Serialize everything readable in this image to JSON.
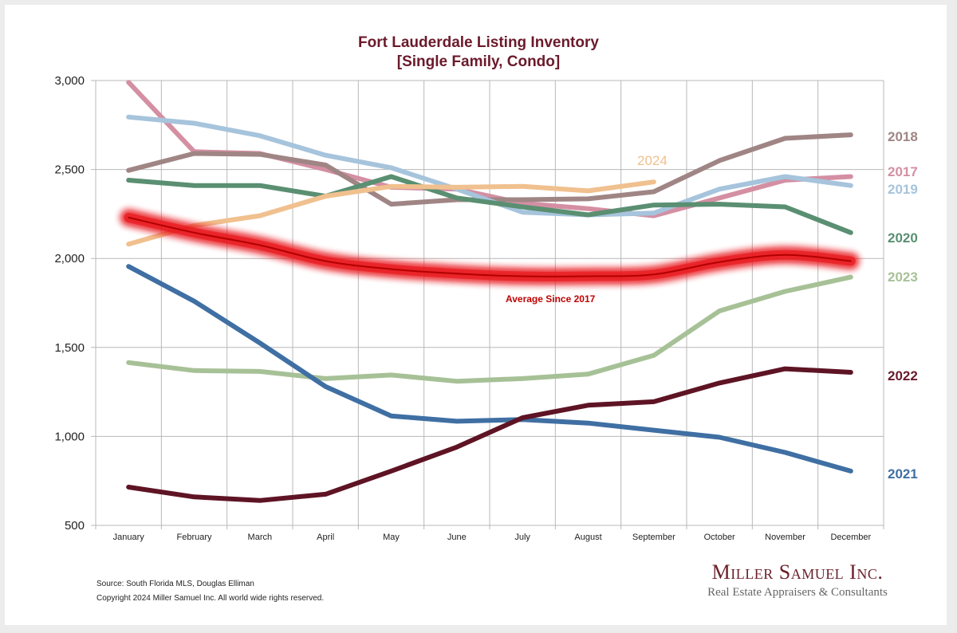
{
  "chart_data": {
    "type": "line",
    "title": "Fort Lauderdale Listing Inventory",
    "subtitle": "[Single Family, Condo]",
    "xlabel": "",
    "ylabel": "",
    "ylim": [
      500,
      3000
    ],
    "yticks": [
      500,
      1000,
      1500,
      2000,
      2500,
      3000
    ],
    "ytick_labels": [
      "500",
      "1,000",
      "1,500",
      "2,000",
      "2,500",
      "3,000"
    ],
    "grid": true,
    "legend": "right-end-labels",
    "categories": [
      "January",
      "February",
      "March",
      "April",
      "May",
      "June",
      "July",
      "August",
      "September",
      "October",
      "November",
      "December"
    ],
    "series": [
      {
        "name": "2017",
        "color": "#d48fa3",
        "values": [
          2990,
          2600,
          2590,
          2500,
          2400,
          2390,
          2310,
          2280,
          2240,
          2340,
          2440,
          2460
        ]
      },
      {
        "name": "2018",
        "color": "#a08585",
        "values": [
          2495,
          2590,
          2585,
          2525,
          2305,
          2330,
          2330,
          2335,
          2375,
          2550,
          2675,
          2695
        ]
      },
      {
        "name": "2019",
        "color": "#a6c4dc",
        "values": [
          2795,
          2760,
          2690,
          2580,
          2510,
          2390,
          2260,
          2245,
          2255,
          2390,
          2460,
          2410
        ]
      },
      {
        "name": "2020",
        "color": "#5a8f72",
        "values": [
          2440,
          2410,
          2410,
          2350,
          2460,
          2340,
          2290,
          2245,
          2300,
          2305,
          2290,
          2145
        ]
      },
      {
        "name": "2023",
        "color": "#a7c197",
        "values": [
          1415,
          1370,
          1365,
          1325,
          1345,
          1310,
          1325,
          1350,
          1455,
          1705,
          1815,
          1895
        ]
      },
      {
        "name": "2021",
        "color": "#3f6fa3",
        "values": [
          1955,
          1760,
          1525,
          1280,
          1115,
          1085,
          1095,
          1075,
          1035,
          995,
          910,
          805
        ]
      },
      {
        "name": "2022",
        "color": "#5e1424",
        "values": [
          715,
          660,
          640,
          675,
          805,
          940,
          1105,
          1175,
          1195,
          1300,
          1380,
          1360
        ]
      },
      {
        "name": "2024",
        "color": "#f0c08e",
        "values": [
          2080,
          2185,
          2240,
          2350,
          2405,
          2400,
          2405,
          2380,
          2430,
          null,
          null,
          null
        ]
      },
      {
        "name": "Average Since 2017",
        "color": "#b30000",
        "glow": "#e8161b",
        "values": [
          2230,
          2145,
          2075,
          1985,
          1940,
          1915,
          1900,
          1900,
          1910,
          1980,
          2020,
          1985
        ]
      }
    ],
    "end_labels": [
      {
        "text": "2018",
        "series": "2018",
        "color": "#a08585"
      },
      {
        "text": "2017",
        "series": "2017",
        "color": "#d48fa3"
      },
      {
        "text": "2019",
        "series": "2019",
        "color": "#a6c4dc"
      },
      {
        "text": "2020",
        "series": "2020",
        "color": "#5a8f72"
      },
      {
        "text": "2023",
        "series": "2023",
        "color": "#a7c197"
      },
      {
        "text": "2022",
        "series": "2022",
        "color": "#6b1a2b"
      },
      {
        "text": "2021",
        "series": "2021",
        "color": "#3f6fa3"
      }
    ],
    "annotations": [
      {
        "text": "2024",
        "color": "#f0c08e"
      },
      {
        "text": "Average  Since 2017",
        "color": "#c00000"
      }
    ]
  },
  "footer": {
    "source": "Source: South Florida MLS, Douglas Elliman",
    "copyright": "Copyright 2024 Miller Samuel Inc.  All world wide rights reserved."
  },
  "brand": {
    "name": "Miller Samuel Inc.",
    "tagline": "Real Estate Appraisers & Consultants"
  }
}
